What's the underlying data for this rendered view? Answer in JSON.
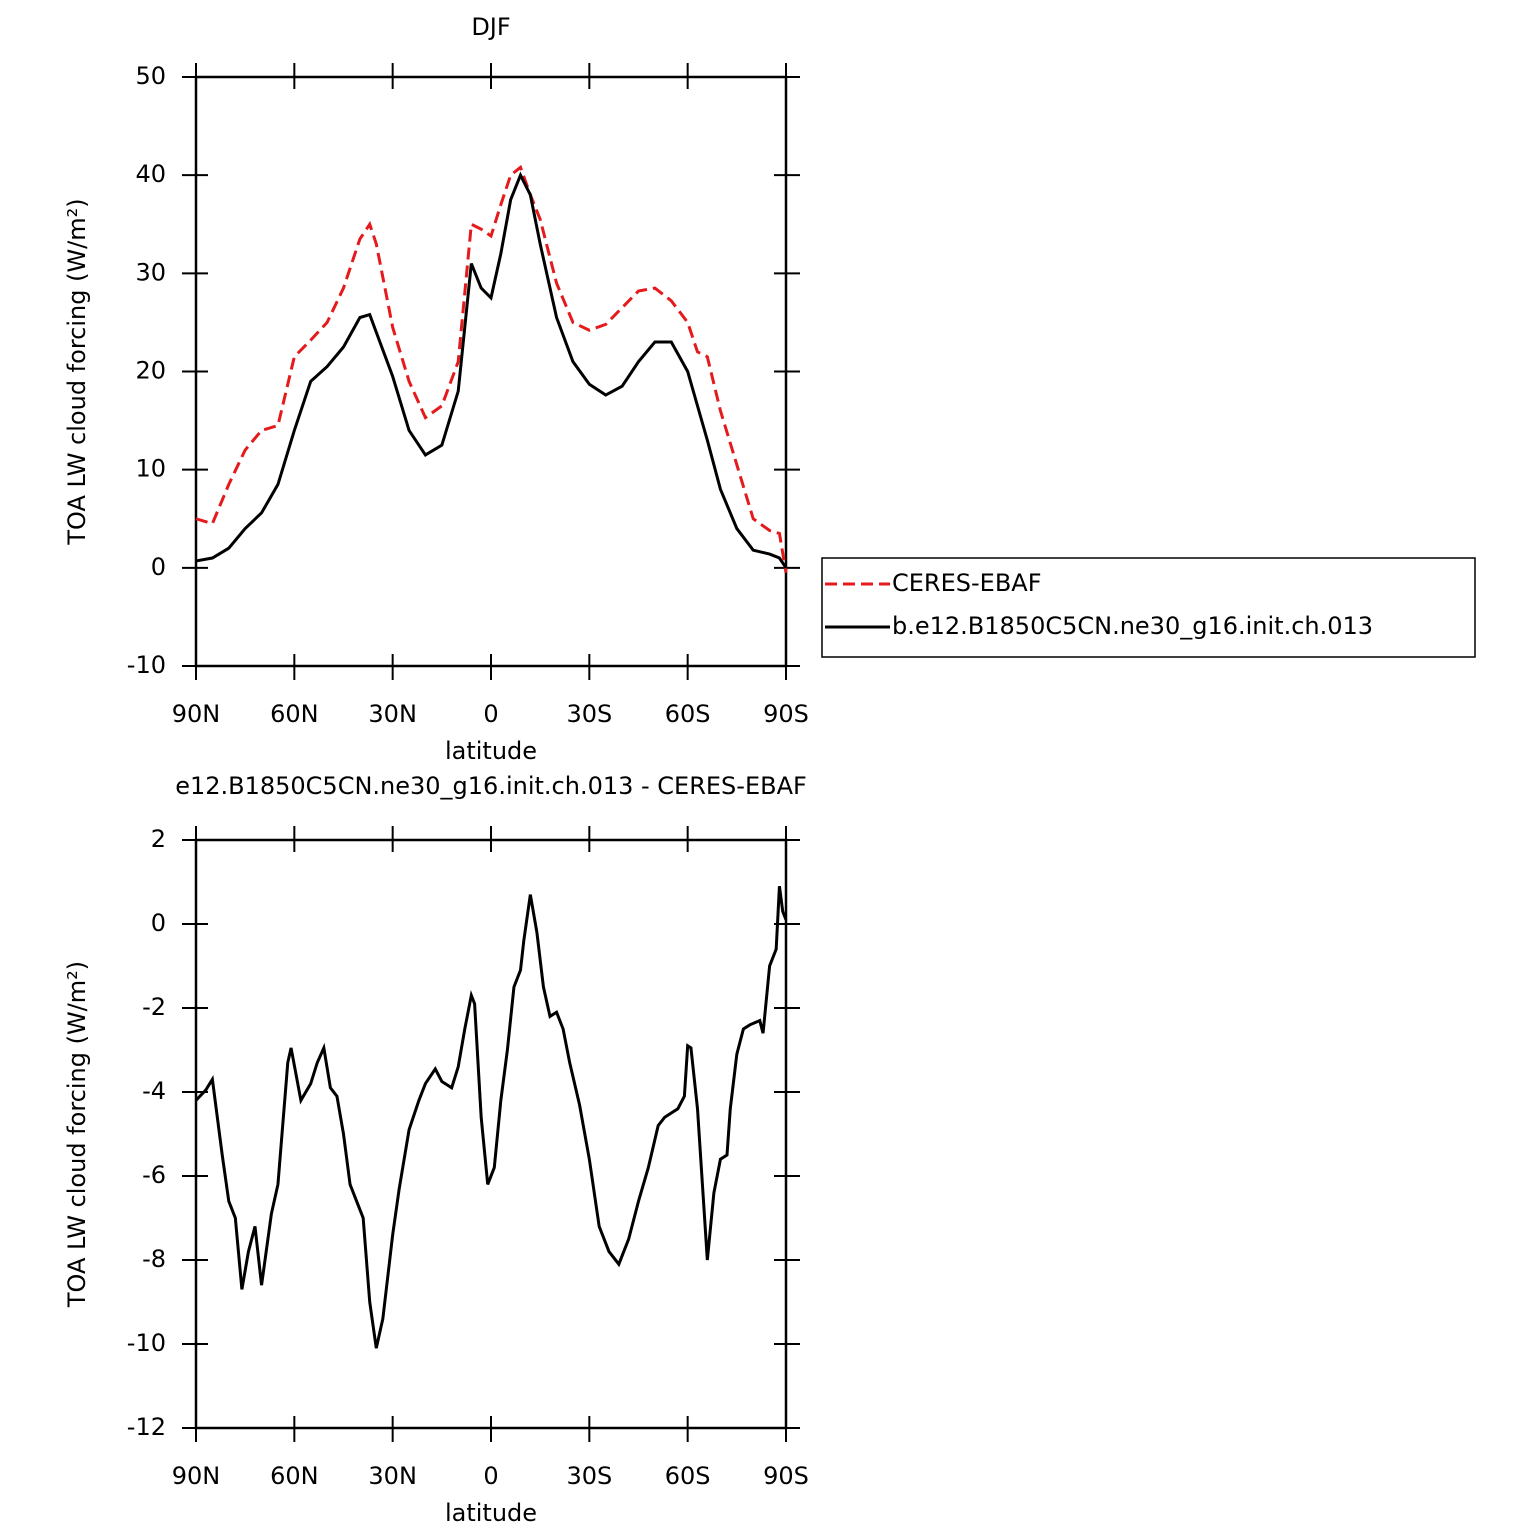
{
  "chart_data": [
    {
      "type": "line",
      "title": "DJF",
      "xlabel": "latitude",
      "ylabel": "TOA LW cloud forcing (W/m²)",
      "x": [
        90,
        85,
        80,
        75,
        70,
        65,
        60,
        55,
        50,
        45,
        40,
        37,
        35,
        30,
        25,
        20,
        15,
        10,
        6,
        3,
        0,
        -3,
        -6,
        -9,
        -12,
        -15,
        -20,
        -25,
        -30,
        -35,
        -40,
        -45,
        -50,
        -55,
        -60,
        -63,
        -66,
        -70,
        -75,
        -80,
        -85,
        -88,
        -90
      ],
      "xlim": [
        90,
        -90
      ],
      "xticks": [
        {
          "value": 90,
          "label": "90N"
        },
        {
          "value": 60,
          "label": "60N"
        },
        {
          "value": 30,
          "label": "30N"
        },
        0,
        {
          "value": -30,
          "label": "30S"
        },
        {
          "value": -60,
          "label": "60S"
        },
        {
          "value": -90,
          "label": "90S"
        }
      ],
      "ylim": [
        -10,
        50
      ],
      "yticks": [
        -10,
        0,
        10,
        20,
        30,
        40,
        50
      ],
      "legend": "right",
      "series": [
        {
          "name": "CERES-EBAF",
          "color": "#e41a1c",
          "dash": true,
          "values": [
            5,
            4.5,
            8.5,
            12,
            14,
            14.5,
            21.5,
            23.2,
            25,
            28.5,
            33.5,
            35,
            33,
            24.5,
            19,
            15.3,
            16.5,
            21,
            35,
            34.5,
            33.8,
            37,
            40,
            40.8,
            38,
            35.5,
            29,
            25,
            24.2,
            24.8,
            26.5,
            28.2,
            28.5,
            27.2,
            25,
            22,
            21.5,
            16,
            10.5,
            5,
            3.8,
            3.5,
            -0.5
          ]
        },
        {
          "name": "b.e12.B1850C5CN.ne30_g16.init.ch.013",
          "color": "#000000",
          "dash": false,
          "values": [
            0.7,
            1,
            2,
            4,
            5.6,
            8.5,
            14,
            19,
            20.5,
            22.5,
            25.5,
            25.8,
            24,
            19.5,
            14,
            11.5,
            12.5,
            18,
            31,
            28.5,
            27.5,
            32,
            37.5,
            40,
            38,
            33,
            25.5,
            21,
            18.7,
            17.6,
            18.5,
            21,
            23,
            23,
            20,
            16.5,
            13,
            8,
            4,
            1.8,
            1.4,
            1,
            0
          ]
        }
      ]
    },
    {
      "type": "line",
      "title": "e12.B1850C5CN.ne30_g16.init.ch.013 - CERES-EBAF",
      "xlabel": "latitude",
      "ylabel": "TOA LW cloud forcing (W/m²)",
      "x": [
        90,
        87,
        85,
        82,
        80,
        78,
        76,
        74,
        72,
        70,
        67,
        65,
        62,
        61,
        58,
        55,
        53,
        51,
        49,
        47,
        45,
        43,
        41,
        39,
        37,
        35,
        33,
        30,
        28,
        25,
        22,
        20,
        17,
        15,
        12,
        10,
        8,
        6,
        5,
        3,
        1,
        -1,
        -3,
        -5,
        -7,
        -9,
        -10,
        -12,
        -14,
        -16,
        -18,
        -20,
        -22,
        -24,
        -27,
        -30,
        -33,
        -36,
        -39,
        -42,
        -45,
        -48,
        -51,
        -53,
        -55,
        -57,
        -59,
        -60,
        -61,
        -63,
        -66,
        -68,
        -70,
        -72,
        -73,
        -75,
        -77,
        -79,
        -82,
        -83,
        -85,
        -87,
        -88,
        -89,
        -90
      ],
      "xlim": [
        90,
        -90
      ],
      "xticks": [
        {
          "value": 90,
          "label": "90N"
        },
        {
          "value": 60,
          "label": "60N"
        },
        {
          "value": 30,
          "label": "30N"
        },
        0,
        {
          "value": -30,
          "label": "30S"
        },
        {
          "value": -60,
          "label": "60S"
        },
        {
          "value": -90,
          "label": "90S"
        }
      ],
      "ylim": [
        -12,
        2
      ],
      "yticks": [
        -12,
        -10,
        -8,
        -6,
        -4,
        -2,
        0,
        2
      ],
      "series": [
        {
          "color": "#000000",
          "dash": false,
          "values": [
            -4.2,
            -3.95,
            -3.7,
            -5.5,
            -6.6,
            -7,
            -8.7,
            -7.8,
            -7.2,
            -8.6,
            -6.9,
            -6.2,
            -3.3,
            -2.95,
            -4.2,
            -3.8,
            -3.3,
            -2.95,
            -3.9,
            -4.1,
            -5,
            -6.2,
            -6.6,
            -7,
            -9,
            -10.1,
            -9.4,
            -7.4,
            -6.3,
            -4.9,
            -4.2,
            -3.8,
            -3.45,
            -3.75,
            -3.9,
            -3.4,
            -2.5,
            -1.7,
            -1.9,
            -4.6,
            -6.2,
            -5.8,
            -4.2,
            -3,
            -1.5,
            -1.1,
            -0.4,
            0.7,
            -0.2,
            -1.5,
            -2.2,
            -2.1,
            -2.5,
            -3.3,
            -4.3,
            -5.6,
            -7.2,
            -7.8,
            -8.1,
            -7.5,
            -6.6,
            -5.8,
            -4.8,
            -4.6,
            -4.5,
            -4.4,
            -4.1,
            -2.9,
            -2.95,
            -4.4,
            -8,
            -6.4,
            -5.6,
            -5.5,
            -4.4,
            -3.1,
            -2.5,
            -2.4,
            -2.3,
            -2.6,
            -1,
            -0.6,
            0.9,
            0.3,
            0.1
          ]
        }
      ]
    }
  ]
}
